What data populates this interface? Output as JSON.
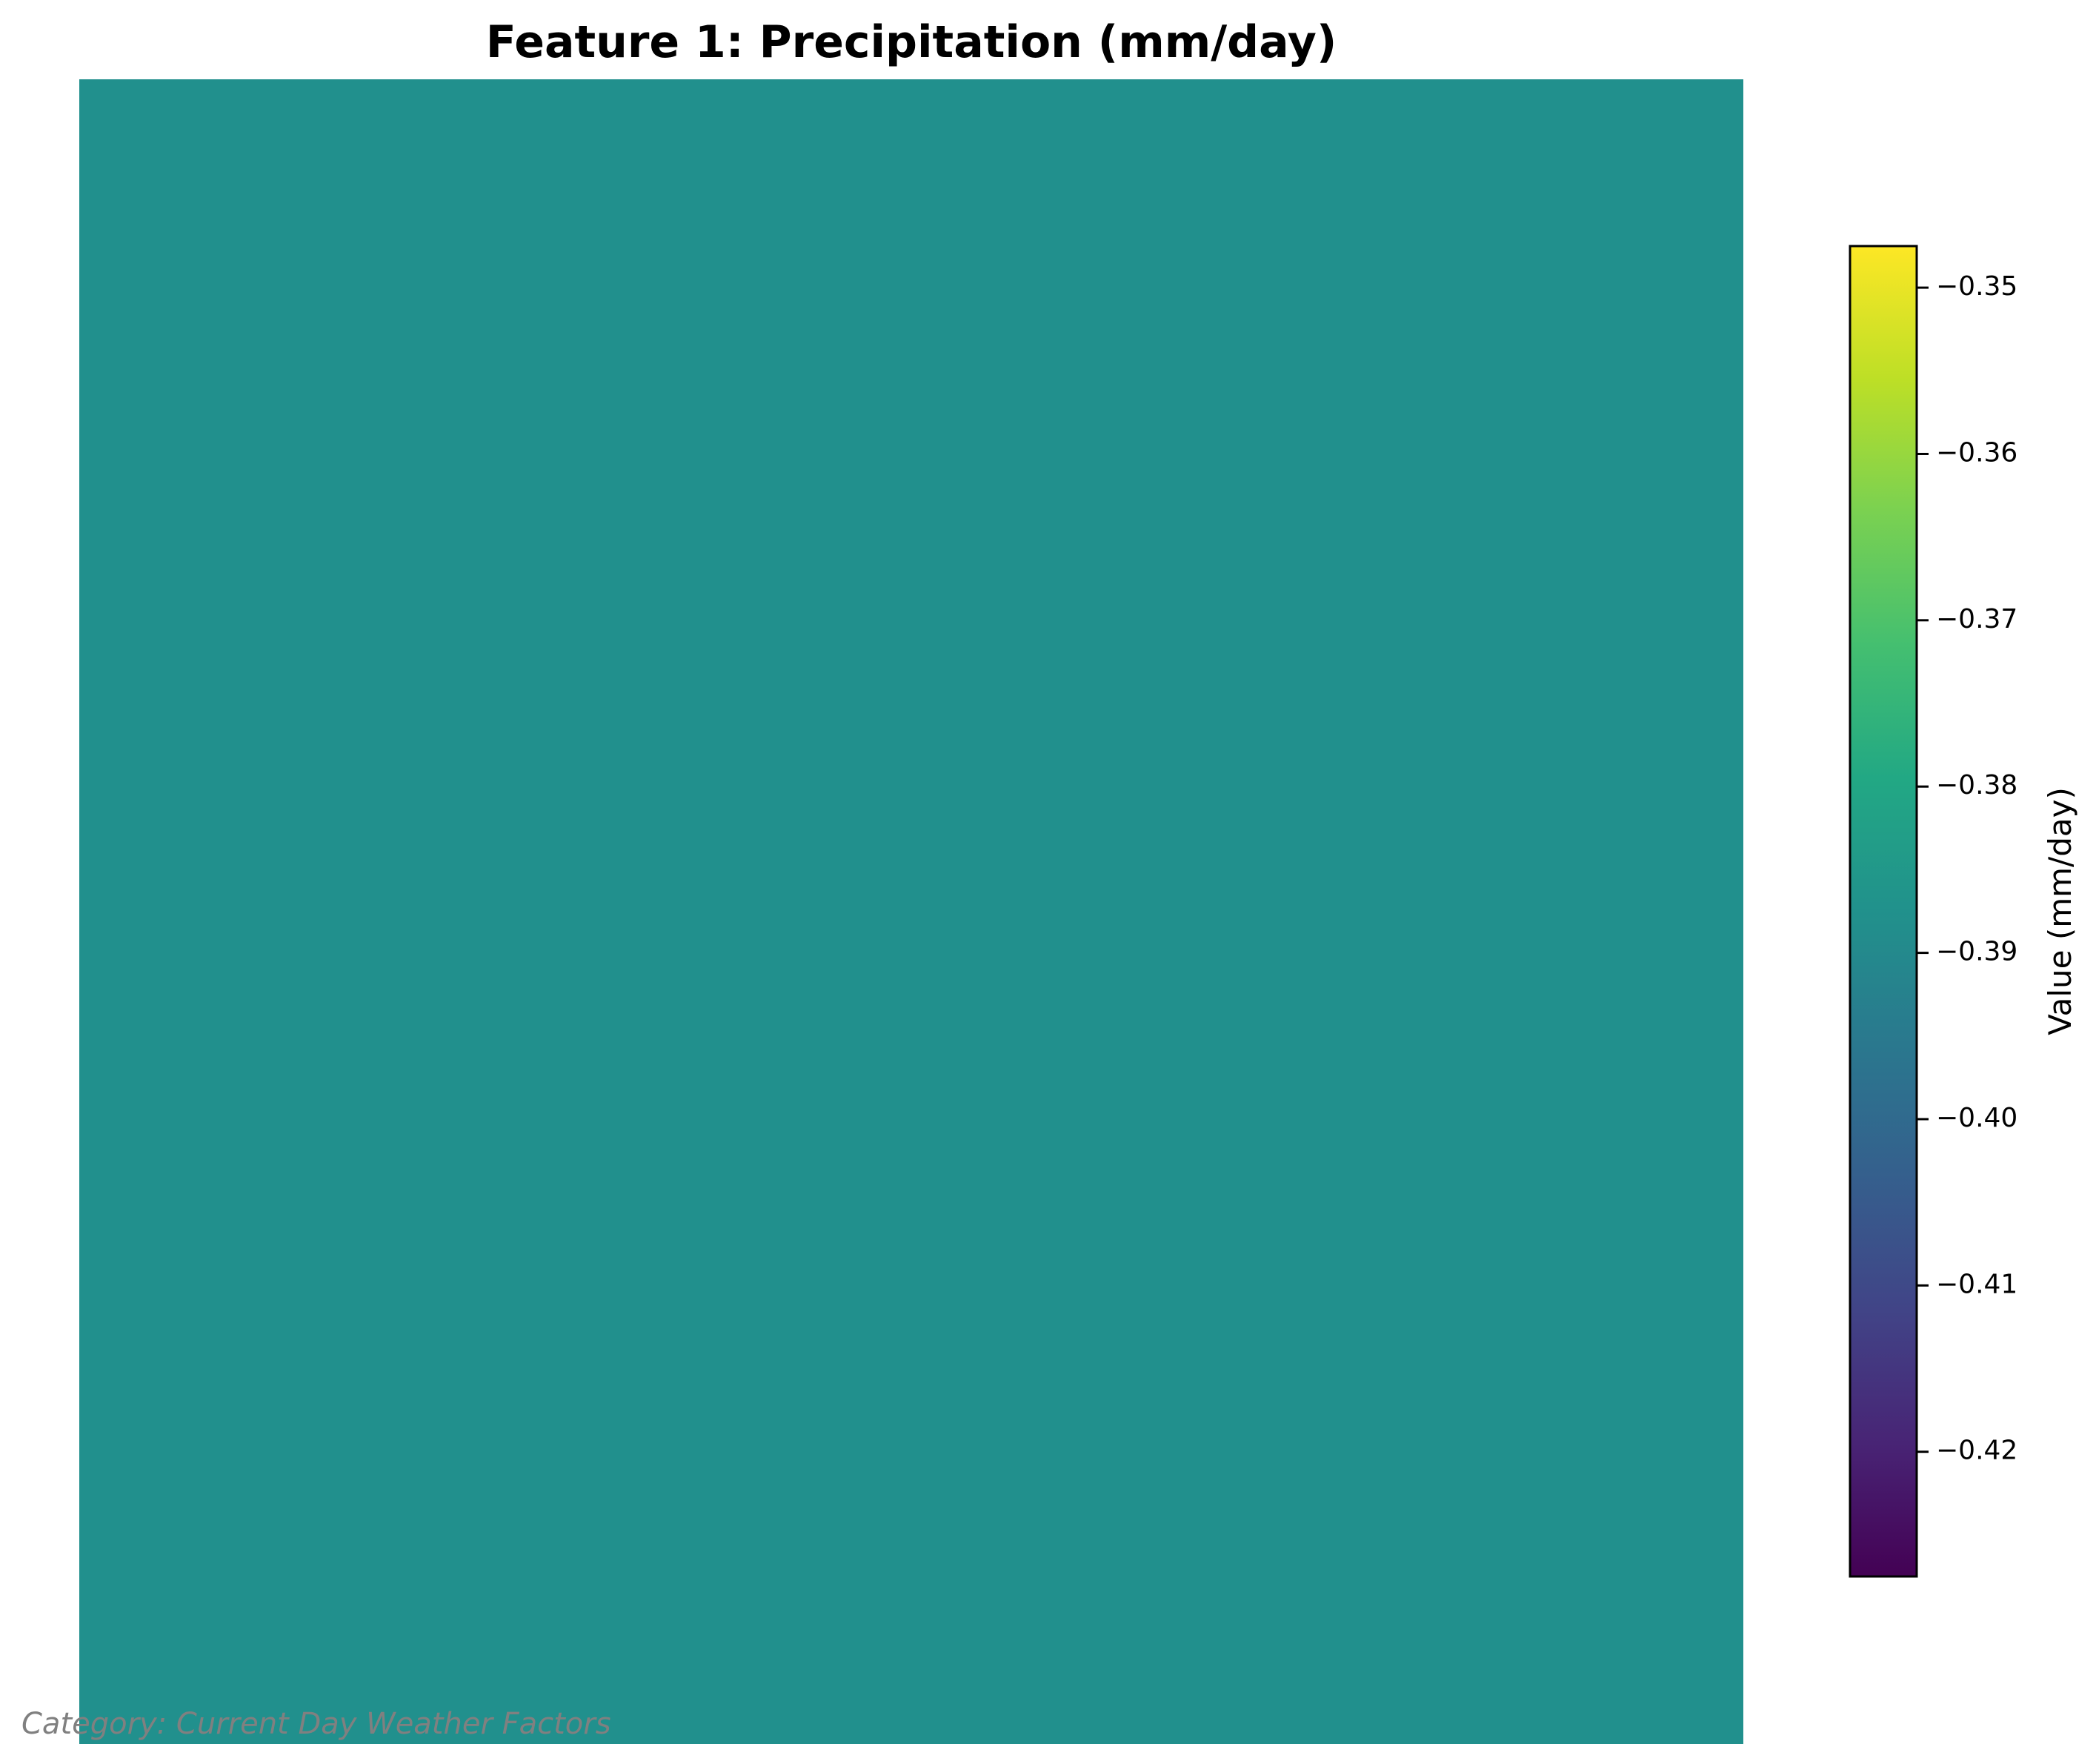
{
  "chart_data": {
    "type": "heatmap",
    "title": "Feature 1: Precipitation (mm/day)",
    "colormap": "viridis",
    "values": [
      [
        -0.3875
      ]
    ],
    "x_axis_visible": false,
    "y_axis_visible": false,
    "grid": false,
    "colorbar": {
      "label": "Value (mm/day)",
      "range": [
        -0.4275,
        -0.3475
      ],
      "ticks": [
        -0.35,
        -0.36,
        -0.37,
        -0.38,
        -0.39,
        -0.4,
        -0.41,
        -0.42
      ],
      "tick_labels": [
        "−0.35",
        "−0.36",
        "−0.37",
        "−0.38",
        "−0.39",
        "−0.40",
        "−0.41",
        "−0.42"
      ]
    },
    "annotation": "Category: Current Day Weather Factors",
    "cell_color": "#21908d"
  }
}
